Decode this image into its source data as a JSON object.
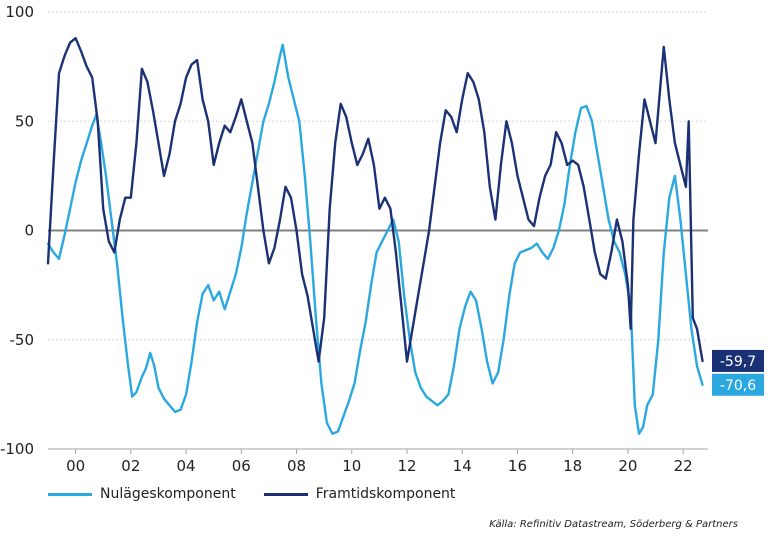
{
  "colors": {
    "nulage": "#2aa8df",
    "framtid": "#1b3175",
    "grid": "#d9d9d9",
    "zero": "#808080",
    "text": "#222222"
  },
  "legend": {
    "nulage_label": "Nulägeskomponent",
    "framtid_label": "Framtidskomponent"
  },
  "source": "Källa: Refinitiv Datastream, Söderberg & Partners",
  "chart_data": {
    "type": "line",
    "xlim": [
      1999.0,
      2022.9
    ],
    "ylim": [
      -100,
      100
    ],
    "yticks": [
      100,
      50,
      0,
      -50,
      -100
    ],
    "ytick_labels": [
      "100",
      "50",
      "0",
      "-50",
      "-100"
    ],
    "xticks": [
      2000,
      2002,
      2004,
      2006,
      2008,
      2010,
      2012,
      2014,
      2016,
      2018,
      2020,
      2022
    ],
    "xtick_labels": [
      "00",
      "02",
      "04",
      "06",
      "08",
      "10",
      "12",
      "14",
      "16",
      "18",
      "20",
      "22"
    ],
    "grid": "horizontal",
    "end_labels": [
      {
        "series": "Framtidskomponent",
        "text": "-59,7",
        "value": -59.7
      },
      {
        "series": "Nulägeskomponent",
        "text": "-70,6",
        "value": -70.6
      }
    ],
    "series": [
      {
        "name": "Nulägeskomponent",
        "color": "#2aa8df",
        "points": [
          [
            1999.0,
            -6
          ],
          [
            1999.2,
            -10
          ],
          [
            1999.4,
            -13
          ],
          [
            1999.6,
            -2
          ],
          [
            1999.8,
            10
          ],
          [
            2000.0,
            22
          ],
          [
            2000.2,
            32
          ],
          [
            2000.4,
            40
          ],
          [
            2000.6,
            48
          ],
          [
            2000.75,
            53
          ],
          [
            2000.9,
            42
          ],
          [
            2001.1,
            25
          ],
          [
            2001.3,
            5
          ],
          [
            2001.5,
            -15
          ],
          [
            2001.7,
            -40
          ],
          [
            2001.9,
            -62
          ],
          [
            2002.05,
            -76
          ],
          [
            2002.2,
            -74
          ],
          [
            2002.4,
            -67
          ],
          [
            2002.55,
            -63
          ],
          [
            2002.7,
            -56
          ],
          [
            2002.85,
            -62
          ],
          [
            2003.0,
            -72
          ],
          [
            2003.2,
            -77
          ],
          [
            2003.4,
            -80
          ],
          [
            2003.6,
            -83
          ],
          [
            2003.8,
            -82
          ],
          [
            2004.0,
            -75
          ],
          [
            2004.2,
            -60
          ],
          [
            2004.4,
            -42
          ],
          [
            2004.6,
            -29
          ],
          [
            2004.8,
            -25
          ],
          [
            2005.0,
            -32
          ],
          [
            2005.2,
            -28
          ],
          [
            2005.4,
            -36
          ],
          [
            2005.6,
            -28
          ],
          [
            2005.8,
            -20
          ],
          [
            2006.0,
            -8
          ],
          [
            2006.2,
            8
          ],
          [
            2006.4,
            22
          ],
          [
            2006.6,
            36
          ],
          [
            2006.8,
            50
          ],
          [
            2007.0,
            58
          ],
          [
            2007.2,
            68
          ],
          [
            2007.4,
            80
          ],
          [
            2007.5,
            85
          ],
          [
            2007.7,
            70
          ],
          [
            2007.9,
            60
          ],
          [
            2008.1,
            50
          ],
          [
            2008.3,
            25
          ],
          [
            2008.5,
            -5
          ],
          [
            2008.7,
            -40
          ],
          [
            2008.9,
            -70
          ],
          [
            2009.1,
            -88
          ],
          [
            2009.3,
            -93
          ],
          [
            2009.5,
            -92
          ],
          [
            2009.7,
            -85
          ],
          [
            2009.9,
            -78
          ],
          [
            2010.1,
            -70
          ],
          [
            2010.3,
            -55
          ],
          [
            2010.5,
            -42
          ],
          [
            2010.7,
            -25
          ],
          [
            2010.9,
            -10
          ],
          [
            2011.1,
            -5
          ],
          [
            2011.3,
            0
          ],
          [
            2011.5,
            5
          ],
          [
            2011.7,
            -5
          ],
          [
            2011.9,
            -30
          ],
          [
            2012.1,
            -50
          ],
          [
            2012.3,
            -65
          ],
          [
            2012.5,
            -72
          ],
          [
            2012.7,
            -76
          ],
          [
            2012.9,
            -78
          ],
          [
            2013.1,
            -80
          ],
          [
            2013.3,
            -78
          ],
          [
            2013.5,
            -75
          ],
          [
            2013.7,
            -62
          ],
          [
            2013.9,
            -45
          ],
          [
            2014.1,
            -35
          ],
          [
            2014.3,
            -28
          ],
          [
            2014.5,
            -32
          ],
          [
            2014.7,
            -45
          ],
          [
            2014.9,
            -60
          ],
          [
            2015.1,
            -70
          ],
          [
            2015.3,
            -65
          ],
          [
            2015.5,
            -50
          ],
          [
            2015.7,
            -30
          ],
          [
            2015.9,
            -15
          ],
          [
            2016.1,
            -10
          ],
          [
            2016.3,
            -9
          ],
          [
            2016.5,
            -8
          ],
          [
            2016.7,
            -6
          ],
          [
            2016.9,
            -10
          ],
          [
            2017.1,
            -13
          ],
          [
            2017.3,
            -8
          ],
          [
            2017.5,
            0
          ],
          [
            2017.7,
            12
          ],
          [
            2017.9,
            30
          ],
          [
            2018.1,
            45
          ],
          [
            2018.3,
            56
          ],
          [
            2018.5,
            57
          ],
          [
            2018.7,
            50
          ],
          [
            2018.9,
            35
          ],
          [
            2019.1,
            20
          ],
          [
            2019.3,
            5
          ],
          [
            2019.5,
            -5
          ],
          [
            2019.7,
            -10
          ],
          [
            2019.9,
            -20
          ],
          [
            2020.1,
            -35
          ],
          [
            2020.25,
            -80
          ],
          [
            2020.4,
            -93
          ],
          [
            2020.55,
            -90
          ],
          [
            2020.7,
            -80
          ],
          [
            2020.9,
            -75
          ],
          [
            2021.1,
            -50
          ],
          [
            2021.3,
            -10
          ],
          [
            2021.5,
            15
          ],
          [
            2021.7,
            25
          ],
          [
            2021.9,
            5
          ],
          [
            2022.1,
            -20
          ],
          [
            2022.3,
            -45
          ],
          [
            2022.5,
            -62
          ],
          [
            2022.7,
            -70.6
          ]
        ]
      },
      {
        "name": "Framtidskomponent",
        "color": "#1b3175",
        "points": [
          [
            1999.0,
            -15
          ],
          [
            1999.2,
            30
          ],
          [
            1999.4,
            72
          ],
          [
            1999.6,
            80
          ],
          [
            1999.8,
            86
          ],
          [
            2000.0,
            88
          ],
          [
            2000.2,
            82
          ],
          [
            2000.4,
            75
          ],
          [
            2000.6,
            70
          ],
          [
            2000.8,
            50
          ],
          [
            2001.0,
            10
          ],
          [
            2001.2,
            -5
          ],
          [
            2001.4,
            -10
          ],
          [
            2001.6,
            5
          ],
          [
            2001.8,
            15
          ],
          [
            2002.0,
            15
          ],
          [
            2002.2,
            40
          ],
          [
            2002.4,
            74
          ],
          [
            2002.6,
            68
          ],
          [
            2002.8,
            55
          ],
          [
            2003.0,
            40
          ],
          [
            2003.2,
            25
          ],
          [
            2003.4,
            35
          ],
          [
            2003.6,
            50
          ],
          [
            2003.8,
            58
          ],
          [
            2004.0,
            70
          ],
          [
            2004.2,
            76
          ],
          [
            2004.4,
            78
          ],
          [
            2004.6,
            60
          ],
          [
            2004.8,
            50
          ],
          [
            2005.0,
            30
          ],
          [
            2005.2,
            40
          ],
          [
            2005.4,
            48
          ],
          [
            2005.6,
            45
          ],
          [
            2005.8,
            52
          ],
          [
            2006.0,
            60
          ],
          [
            2006.2,
            50
          ],
          [
            2006.4,
            40
          ],
          [
            2006.6,
            20
          ],
          [
            2006.8,
            0
          ],
          [
            2007.0,
            -15
          ],
          [
            2007.2,
            -8
          ],
          [
            2007.4,
            5
          ],
          [
            2007.6,
            20
          ],
          [
            2007.8,
            15
          ],
          [
            2008.0,
            0
          ],
          [
            2008.2,
            -20
          ],
          [
            2008.4,
            -30
          ],
          [
            2008.6,
            -45
          ],
          [
            2008.8,
            -60
          ],
          [
            2009.0,
            -40
          ],
          [
            2009.2,
            10
          ],
          [
            2009.4,
            40
          ],
          [
            2009.6,
            58
          ],
          [
            2009.8,
            52
          ],
          [
            2010.0,
            40
          ],
          [
            2010.2,
            30
          ],
          [
            2010.4,
            35
          ],
          [
            2010.6,
            42
          ],
          [
            2010.8,
            30
          ],
          [
            2011.0,
            10
          ],
          [
            2011.2,
            15
          ],
          [
            2011.4,
            10
          ],
          [
            2011.6,
            -10
          ],
          [
            2011.8,
            -35
          ],
          [
            2012.0,
            -60
          ],
          [
            2012.2,
            -45
          ],
          [
            2012.4,
            -30
          ],
          [
            2012.6,
            -15
          ],
          [
            2012.8,
            0
          ],
          [
            2013.0,
            20
          ],
          [
            2013.2,
            40
          ],
          [
            2013.4,
            55
          ],
          [
            2013.6,
            52
          ],
          [
            2013.8,
            45
          ],
          [
            2014.0,
            60
          ],
          [
            2014.2,
            72
          ],
          [
            2014.4,
            68
          ],
          [
            2014.6,
            60
          ],
          [
            2014.8,
            45
          ],
          [
            2015.0,
            20
          ],
          [
            2015.2,
            5
          ],
          [
            2015.4,
            30
          ],
          [
            2015.6,
            50
          ],
          [
            2015.8,
            40
          ],
          [
            2016.0,
            25
          ],
          [
            2016.2,
            15
          ],
          [
            2016.4,
            5
          ],
          [
            2016.6,
            2
          ],
          [
            2016.8,
            15
          ],
          [
            2017.0,
            25
          ],
          [
            2017.2,
            30
          ],
          [
            2017.4,
            45
          ],
          [
            2017.6,
            40
          ],
          [
            2017.8,
            30
          ],
          [
            2018.0,
            32
          ],
          [
            2018.2,
            30
          ],
          [
            2018.4,
            20
          ],
          [
            2018.6,
            5
          ],
          [
            2018.8,
            -10
          ],
          [
            2019.0,
            -20
          ],
          [
            2019.2,
            -22
          ],
          [
            2019.4,
            -10
          ],
          [
            2019.6,
            5
          ],
          [
            2019.8,
            -5
          ],
          [
            2020.0,
            -25
          ],
          [
            2020.1,
            -45
          ],
          [
            2020.2,
            5
          ],
          [
            2020.4,
            35
          ],
          [
            2020.6,
            60
          ],
          [
            2020.8,
            50
          ],
          [
            2021.0,
            40
          ],
          [
            2021.2,
            70
          ],
          [
            2021.3,
            84
          ],
          [
            2021.5,
            60
          ],
          [
            2021.7,
            40
          ],
          [
            2021.9,
            30
          ],
          [
            2022.1,
            20
          ],
          [
            2022.2,
            50
          ],
          [
            2022.35,
            -40
          ],
          [
            2022.5,
            -45
          ],
          [
            2022.7,
            -59.7
          ]
        ]
      }
    ]
  }
}
